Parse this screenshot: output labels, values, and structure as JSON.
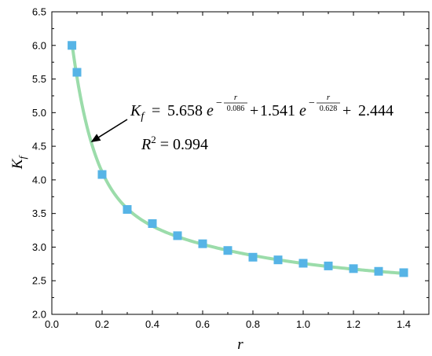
{
  "chart_data": {
    "type": "scatter",
    "xlabel": "r",
    "ylabel": "K",
    "ylabel_sub": "f",
    "xlim": [
      0.0,
      1.5
    ],
    "ylim": [
      2.0,
      6.5
    ],
    "xticks": [
      "0.0",
      "0.2",
      "0.4",
      "0.6",
      "0.8",
      "1.0",
      "1.2",
      "1.4"
    ],
    "yticks": [
      "2.0",
      "2.5",
      "3.0",
      "3.5",
      "4.0",
      "4.5",
      "5.0",
      "5.5",
      "6.0",
      "6.5"
    ],
    "grid": false,
    "series": [
      {
        "x": [
          0.08,
          0.1,
          0.2,
          0.3,
          0.4,
          0.5,
          0.6,
          0.7,
          0.8,
          0.9,
          1.0,
          1.1,
          1.2,
          1.3,
          1.4
        ],
        "values": [
          6.0,
          5.6,
          4.08,
          3.56,
          3.35,
          3.17,
          3.05,
          2.95,
          2.85,
          2.81,
          2.76,
          2.72,
          2.68,
          2.64,
          2.62
        ],
        "marker": "square",
        "color": "#56b4e6"
      }
    ],
    "fit": {
      "a1": 5.658,
      "t1": 0.086,
      "a2": 1.541,
      "t2": 0.628,
      "c": 2.444,
      "x_range": [
        0.08,
        1.4
      ],
      "color": "#9bdcaa"
    },
    "annotation": {
      "equation": {
        "lhs_var": "K",
        "lhs_sub": "f",
        "eq": "=",
        "c1": "5.658",
        "e1": "e",
        "exp_sign1": "−",
        "frac1_num": "r",
        "frac1_den": "0.086",
        "plus1": "+",
        "c2": "1.541",
        "e2": "e",
        "exp_sign2": "−",
        "frac2_num": "r",
        "frac2_den": "0.628",
        "plus2": "+",
        "c3": "2.444"
      },
      "r2": {
        "var": "R",
        "sup": "2",
        "rhs": "= 0.994"
      },
      "arrow_to": {
        "x": 0.155,
        "y": 4.56
      }
    }
  }
}
